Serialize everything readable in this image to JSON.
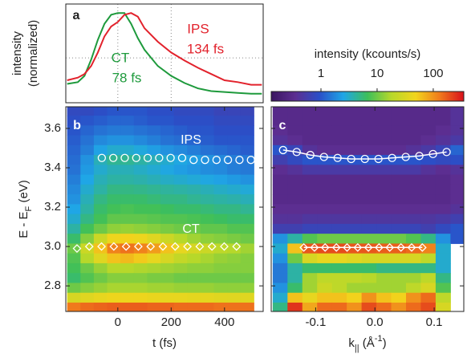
{
  "chart_data": [
    {
      "type": "line",
      "label": "a",
      "ylabel": [
        "intensity",
        "(normalized)"
      ],
      "xlim": [
        -195,
        545
      ],
      "ylim": [
        0,
        1.1
      ],
      "xgrid": [
        0,
        200
      ],
      "ygrid": [
        0.5
      ],
      "series": [
        {
          "name": "CT",
          "label": "78 fs",
          "color": "#1e9a3c",
          "x": [
            -190,
            -150,
            -125,
            -100,
            -75,
            -50,
            -25,
            0,
            25,
            50,
            75,
            100,
            150,
            200,
            250,
            300,
            350,
            400,
            450,
            500,
            540
          ],
          "values": [
            0.21,
            0.23,
            0.3,
            0.48,
            0.7,
            0.88,
            0.98,
            1.0,
            1.0,
            0.88,
            0.72,
            0.59,
            0.41,
            0.3,
            0.22,
            0.16,
            0.13,
            0.12,
            0.11,
            0.1,
            0.1
          ]
        },
        {
          "name": "IPS",
          "label": "134 fs",
          "color": "#e2222c",
          "x": [
            -190,
            -150,
            -125,
            -100,
            -75,
            -50,
            -25,
            0,
            25,
            50,
            75,
            100,
            150,
            200,
            250,
            300,
            350,
            400,
            450,
            500,
            540
          ],
          "values": [
            0.25,
            0.28,
            0.32,
            0.41,
            0.56,
            0.74,
            0.85,
            0.9,
            0.98,
            1.0,
            0.96,
            0.83,
            0.68,
            0.56,
            0.47,
            0.39,
            0.32,
            0.25,
            0.23,
            0.2,
            0.2
          ]
        }
      ]
    },
    {
      "type": "heatmap",
      "label": "b",
      "xlabel": "t (fs)",
      "ylabel": [
        "E - E",
        "F",
        " (eV)"
      ],
      "xlim": [
        -195,
        545
      ],
      "ylim": [
        2.67,
        3.71
      ],
      "xticks": [
        0,
        200,
        400
      ],
      "yticks": [
        2.8,
        {
          "value": 3,
          "label": "3.0"
        },
        3.2,
        3.4,
        3.6
      ],
      "x": [
        -165,
        -115,
        -65,
        -15,
        35,
        85,
        135,
        185,
        235,
        285,
        335,
        385,
        435,
        485
      ],
      "y": [
        3.69,
        3.64,
        3.59,
        3.54,
        3.49,
        3.44,
        3.39,
        3.34,
        3.29,
        3.24,
        3.19,
        3.14,
        3.09,
        3.04,
        2.99,
        2.94,
        2.89,
        2.84,
        2.79,
        2.74,
        2.69
      ],
      "values": [
        [
          0.8,
          0.8,
          0.9,
          1,
          1,
          1,
          0.9,
          0.9,
          0.8,
          0.8,
          0.8,
          0.7,
          0.7,
          0.7
        ],
        [
          0.9,
          1,
          1.1,
          1.2,
          1.2,
          1.1,
          1,
          1,
          0.9,
          0.9,
          0.9,
          0.8,
          0.8,
          0.8
        ],
        [
          1,
          1.2,
          1.4,
          1.5,
          1.5,
          1.4,
          1.3,
          1.2,
          1.1,
          1,
          1,
          0.9,
          0.9,
          0.9
        ],
        [
          1.1,
          1.4,
          1.8,
          2,
          2,
          1.8,
          1.6,
          1.4,
          1.3,
          1.2,
          1.1,
          1,
          1,
          1
        ],
        [
          1.2,
          1.6,
          2.4,
          3,
          3,
          2.7,
          2.3,
          2,
          1.8,
          1.6,
          1.4,
          1.3,
          1.2,
          1.1
        ],
        [
          1.3,
          2,
          3.5,
          4.5,
          4.5,
          4,
          3.5,
          3,
          2.6,
          2.3,
          2,
          1.8,
          1.6,
          1.5
        ],
        [
          1.4,
          2.2,
          3,
          3.5,
          3.5,
          3.2,
          2.9,
          2.6,
          2.3,
          2.1,
          1.9,
          1.8,
          1.6,
          1.5
        ],
        [
          1.6,
          2.5,
          3.5,
          4,
          4,
          3.8,
          3.5,
          3.2,
          3,
          2.8,
          2.6,
          2.4,
          2.2,
          2
        ],
        [
          1.8,
          3,
          4,
          5,
          5,
          4.8,
          4.5,
          4.2,
          4,
          3.8,
          3.5,
          3.2,
          3,
          2.8
        ],
        [
          2,
          3.5,
          5,
          6,
          6,
          6,
          5.5,
          5,
          5,
          4.5,
          4.2,
          4,
          3.8,
          3.5
        ],
        [
          2.5,
          4,
          6,
          7,
          7.5,
          7,
          7,
          6.5,
          6,
          6,
          5.5,
          5,
          5,
          4.5
        ],
        [
          3,
          5,
          7,
          9,
          9,
          9,
          8.5,
          8,
          8,
          7.5,
          7,
          6.5,
          6,
          6
        ],
        [
          4,
          7,
          10,
          13,
          14,
          13,
          12,
          11,
          10,
          10,
          9,
          9,
          8,
          8
        ],
        [
          6,
          12,
          25,
          45,
          50,
          45,
          35,
          25,
          18,
          15,
          13,
          12,
          11,
          10
        ],
        [
          10,
          25,
          60,
          120,
          140,
          120,
          90,
          60,
          40,
          30,
          25,
          20,
          18,
          15
        ],
        [
          8,
          18,
          35,
          60,
          65,
          55,
          40,
          30,
          22,
          18,
          16,
          14,
          13,
          12
        ],
        [
          7,
          10,
          14,
          18,
          18,
          17,
          16,
          15,
          14,
          13,
          13,
          12,
          12,
          12
        ],
        [
          6,
          8,
          10,
          12,
          12,
          12,
          11,
          11,
          10,
          10,
          10,
          10,
          10,
          10
        ],
        [
          10,
          12,
          14,
          16,
          16,
          16,
          15,
          15,
          14,
          14,
          14,
          13,
          13,
          13
        ],
        [
          30,
          35,
          40,
          45,
          45,
          45,
          42,
          40,
          40,
          38,
          38,
          36,
          35,
          35
        ],
        [
          130,
          150,
          160,
          170,
          170,
          170,
          160,
          160,
          150,
          150,
          150,
          140,
          140,
          140
        ]
      ],
      "markers": [
        {
          "name": "IPS",
          "shape": "circle",
          "x": [
            -60,
            -17,
            26,
            69,
            112,
            155,
            198,
            241,
            284,
            327,
            370,
            413,
            456,
            499
          ],
          "y": [
            3.45,
            3.45,
            3.45,
            3.45,
            3.45,
            3.45,
            3.45,
            3.45,
            3.44,
            3.44,
            3.44,
            3.44,
            3.44,
            3.44
          ]
        },
        {
          "name": "CT",
          "shape": "diamond",
          "x": [
            -153,
            -107,
            -61,
            -15,
            31,
            77,
            123,
            169,
            215,
            261,
            307,
            353,
            399,
            445
          ],
          "y": [
            2.99,
            3.0,
            3.0,
            3.0,
            3.0,
            3.0,
            3.0,
            3.0,
            3.0,
            3.0,
            3.0,
            3.0,
            3.0,
            3.0
          ]
        }
      ]
    },
    {
      "type": "heatmap",
      "label": "c",
      "xlabel": [
        "k",
        "||",
        " (Å",
        "-1",
        ")"
      ],
      "xlim": [
        -0.175,
        0.15
      ],
      "ylim": [
        2.67,
        3.71
      ],
      "xticks": [
        -0.1,
        {
          "value": 0,
          "label": "0.0"
        },
        0.1
      ],
      "ytick_marks": [
        2.8,
        3.0,
        3.2,
        3.4,
        3.6
      ],
      "x": [
        -0.16,
        -0.135,
        -0.11,
        -0.085,
        -0.06,
        -0.035,
        -0.01,
        0.015,
        0.04,
        0.065,
        0.09,
        0.115,
        0.14
      ],
      "y": [
        3.69,
        3.64,
        3.59,
        3.54,
        3.49,
        3.44,
        3.39,
        3.34,
        3.29,
        3.24,
        3.19,
        3.14,
        3.09,
        3.04,
        2.99,
        2.94,
        2.89,
        2.84,
        2.79,
        2.74,
        2.69
      ],
      "values": [
        [
          0.3,
          0.3,
          0.3,
          0.3,
          0.3,
          0.3,
          0.3,
          0.3,
          0.3,
          0.3,
          0.3,
          0.3,
          0.4
        ],
        [
          0.3,
          0.3,
          0.3,
          0.3,
          0.3,
          0.3,
          0.3,
          0.3,
          0.3,
          0.3,
          0.3,
          0.3,
          0.4
        ],
        [
          0.35,
          0.3,
          0.3,
          0.3,
          0.3,
          0.3,
          0.3,
          0.3,
          0.3,
          0.3,
          0.3,
          0.35,
          0.4
        ],
        [
          0.4,
          0.35,
          0.3,
          0.3,
          0.3,
          0.3,
          0.3,
          0.3,
          0.3,
          0.3,
          0.35,
          0.4,
          0.5
        ],
        [
          1,
          0.7,
          0.4,
          0.35,
          0.35,
          0.35,
          0.35,
          0.35,
          0.35,
          0.4,
          0.5,
          0.7,
          1.2
        ],
        [
          0.6,
          0.8,
          1,
          1,
          1,
          1,
          1,
          1,
          1,
          1,
          0.9,
          0.8,
          0.9
        ],
        [
          0.35,
          0.4,
          0.5,
          0.5,
          0.5,
          0.5,
          0.5,
          0.5,
          0.5,
          0.5,
          0.4,
          0.35,
          0.4
        ],
        [
          0.3,
          0.3,
          0.3,
          0.3,
          0.3,
          0.3,
          0.3,
          0.3,
          0.3,
          0.3,
          0.3,
          0.3,
          0.35
        ],
        [
          0.3,
          0.3,
          0.3,
          0.3,
          0.3,
          0.3,
          0.3,
          0.3,
          0.3,
          0.3,
          0.3,
          0.3,
          0.35
        ],
        [
          0.3,
          0.3,
          0.3,
          0.3,
          0.3,
          0.3,
          0.3,
          0.3,
          0.3,
          0.3,
          0.3,
          0.3,
          0.35
        ],
        [
          0.35,
          0.35,
          0.35,
          0.35,
          0.35,
          0.35,
          0.35,
          0.35,
          0.35,
          0.35,
          0.35,
          0.35,
          0.4
        ],
        [
          0.4,
          0.4,
          0.45,
          0.45,
          0.45,
          0.45,
          0.45,
          0.45,
          0.45,
          0.45,
          0.45,
          0.5,
          0.6
        ],
        [
          0.6,
          0.6,
          0.7,
          0.7,
          0.7,
          0.7,
          0.7,
          0.7,
          0.7,
          0.7,
          0.6,
          0.8,
          1
        ],
        [
          2,
          4,
          8,
          10,
          10,
          10,
          10,
          10,
          10,
          8,
          5,
          2,
          1
        ],
        [
          3,
          60,
          180,
          200,
          200,
          180,
          180,
          170,
          170,
          150,
          120,
          3,
          null
        ],
        [
          2,
          10,
          30,
          40,
          40,
          35,
          30,
          30,
          30,
          30,
          20,
          3,
          null
        ],
        [
          1.5,
          4,
          6,
          6,
          6,
          6,
          6,
          5,
          5,
          5,
          5,
          3,
          null
        ],
        [
          1.5,
          4,
          15,
          20,
          20,
          20,
          18,
          15,
          15,
          15,
          20,
          5,
          null
        ],
        [
          2,
          6,
          15,
          25,
          20,
          15,
          15,
          15,
          15,
          20,
          30,
          8,
          null
        ],
        [
          3,
          60,
          40,
          60,
          60,
          50,
          100,
          60,
          50,
          100,
          150,
          20,
          null
        ],
        [
          5,
          250,
          80,
          150,
          150,
          100,
          200,
          150,
          100,
          150,
          200,
          30,
          null
        ]
      ],
      "markers": [
        {
          "shape": "circle",
          "line": true,
          "x": [
            -0.155,
            -0.132,
            -0.109,
            -0.086,
            -0.063,
            -0.04,
            -0.017,
            0.006,
            0.029,
            0.052,
            0.075,
            0.098,
            0.121
          ],
          "y": [
            3.49,
            3.48,
            3.465,
            3.455,
            3.45,
            3.445,
            3.445,
            3.445,
            3.45,
            3.455,
            3.46,
            3.47,
            3.48
          ]
        },
        {
          "shape": "diamond",
          "line": true,
          "x": [
            -0.12,
            -0.102,
            -0.084,
            -0.065,
            -0.047,
            -0.029,
            -0.011,
            0.007,
            0.025,
            0.044,
            0.062,
            0.08
          ],
          "y": [
            2.995,
            2.995,
            2.995,
            2.995,
            2.995,
            2.995,
            2.995,
            2.995,
            2.995,
            2.995,
            2.995,
            2.995
          ]
        }
      ]
    },
    {
      "type": "colorbar",
      "title": "intensity (kcounts/s)",
      "clim": [
        0.13,
        350
      ],
      "log": true,
      "ticks": [
        1,
        10,
        100
      ],
      "colors": [
        "#3a1560",
        "#5c2e91",
        "#2a4fc8",
        "#1fa6e6",
        "#3dbf5a",
        "#b8d82a",
        "#f2d51c",
        "#f07a1c",
        "#d8101c"
      ]
    }
  ]
}
